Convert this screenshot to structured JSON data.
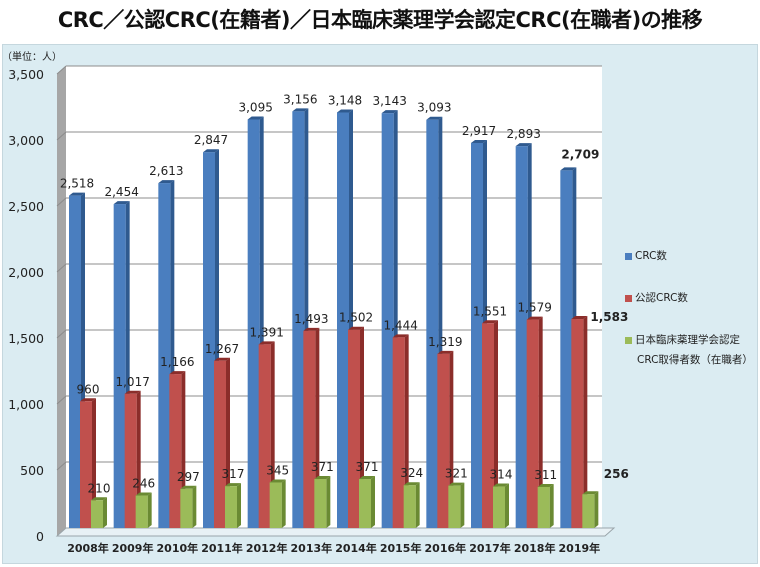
{
  "chart_data": {
    "type": "bar",
    "title": "CRC／公認CRC(在籍者)／日本臨床薬理学会認定CRC(在職者)の推移",
    "unit_label": "（単位：人）",
    "xlabel": "",
    "ylabel": "",
    "ylim": [
      0,
      3500
    ],
    "yticks": [
      0,
      500,
      1000,
      1500,
      2000,
      2500,
      3000,
      3500
    ],
    "ytick_labels": [
      "0",
      "500",
      "1,000",
      "1,500",
      "2,000",
      "2,500",
      "3,000",
      "3,500"
    ],
    "grid": true,
    "legend_position": "right",
    "categories": [
      "2008年",
      "2009年",
      "2010年",
      "2011年",
      "2012年",
      "2013年",
      "2014年",
      "2015年",
      "2016年",
      "2017年",
      "2018年",
      "2019年"
    ],
    "series": [
      {
        "name": "CRC数",
        "color": "#4a7ebf",
        "values": [
          2518,
          2454,
          2613,
          2847,
          3095,
          3156,
          3148,
          3143,
          3093,
          2917,
          2893,
          2709
        ],
        "labels": [
          "2,518",
          "2,454",
          "2,613",
          "2,847",
          "3,095",
          "3,156",
          "3,148",
          "3,143",
          "3,093",
          "2,917",
          "2,893",
          "2,709"
        ]
      },
      {
        "name": "公認CRC数",
        "color": "#c0504d",
        "values": [
          960,
          1017,
          1166,
          1267,
          1391,
          1493,
          1502,
          1444,
          1319,
          1551,
          1579,
          1583
        ],
        "labels": [
          "960",
          "1,017",
          "1,166",
          "1,267",
          "1,391",
          "1,493",
          "1,502",
          "1,444",
          "1,319",
          "1,551",
          "1,579",
          "1,583"
        ]
      },
      {
        "name": "日本臨床薬理学会認定",
        "name_line2": "CRC取得者数（在職者）",
        "color": "#9bbb59",
        "values": [
          210,
          246,
          297,
          317,
          345,
          371,
          371,
          324,
          321,
          314,
          311,
          256
        ],
        "labels": [
          "210",
          "246",
          "297",
          "317",
          "345",
          "371",
          "371",
          "324",
          "321",
          "314",
          "311",
          "256"
        ]
      }
    ]
  }
}
